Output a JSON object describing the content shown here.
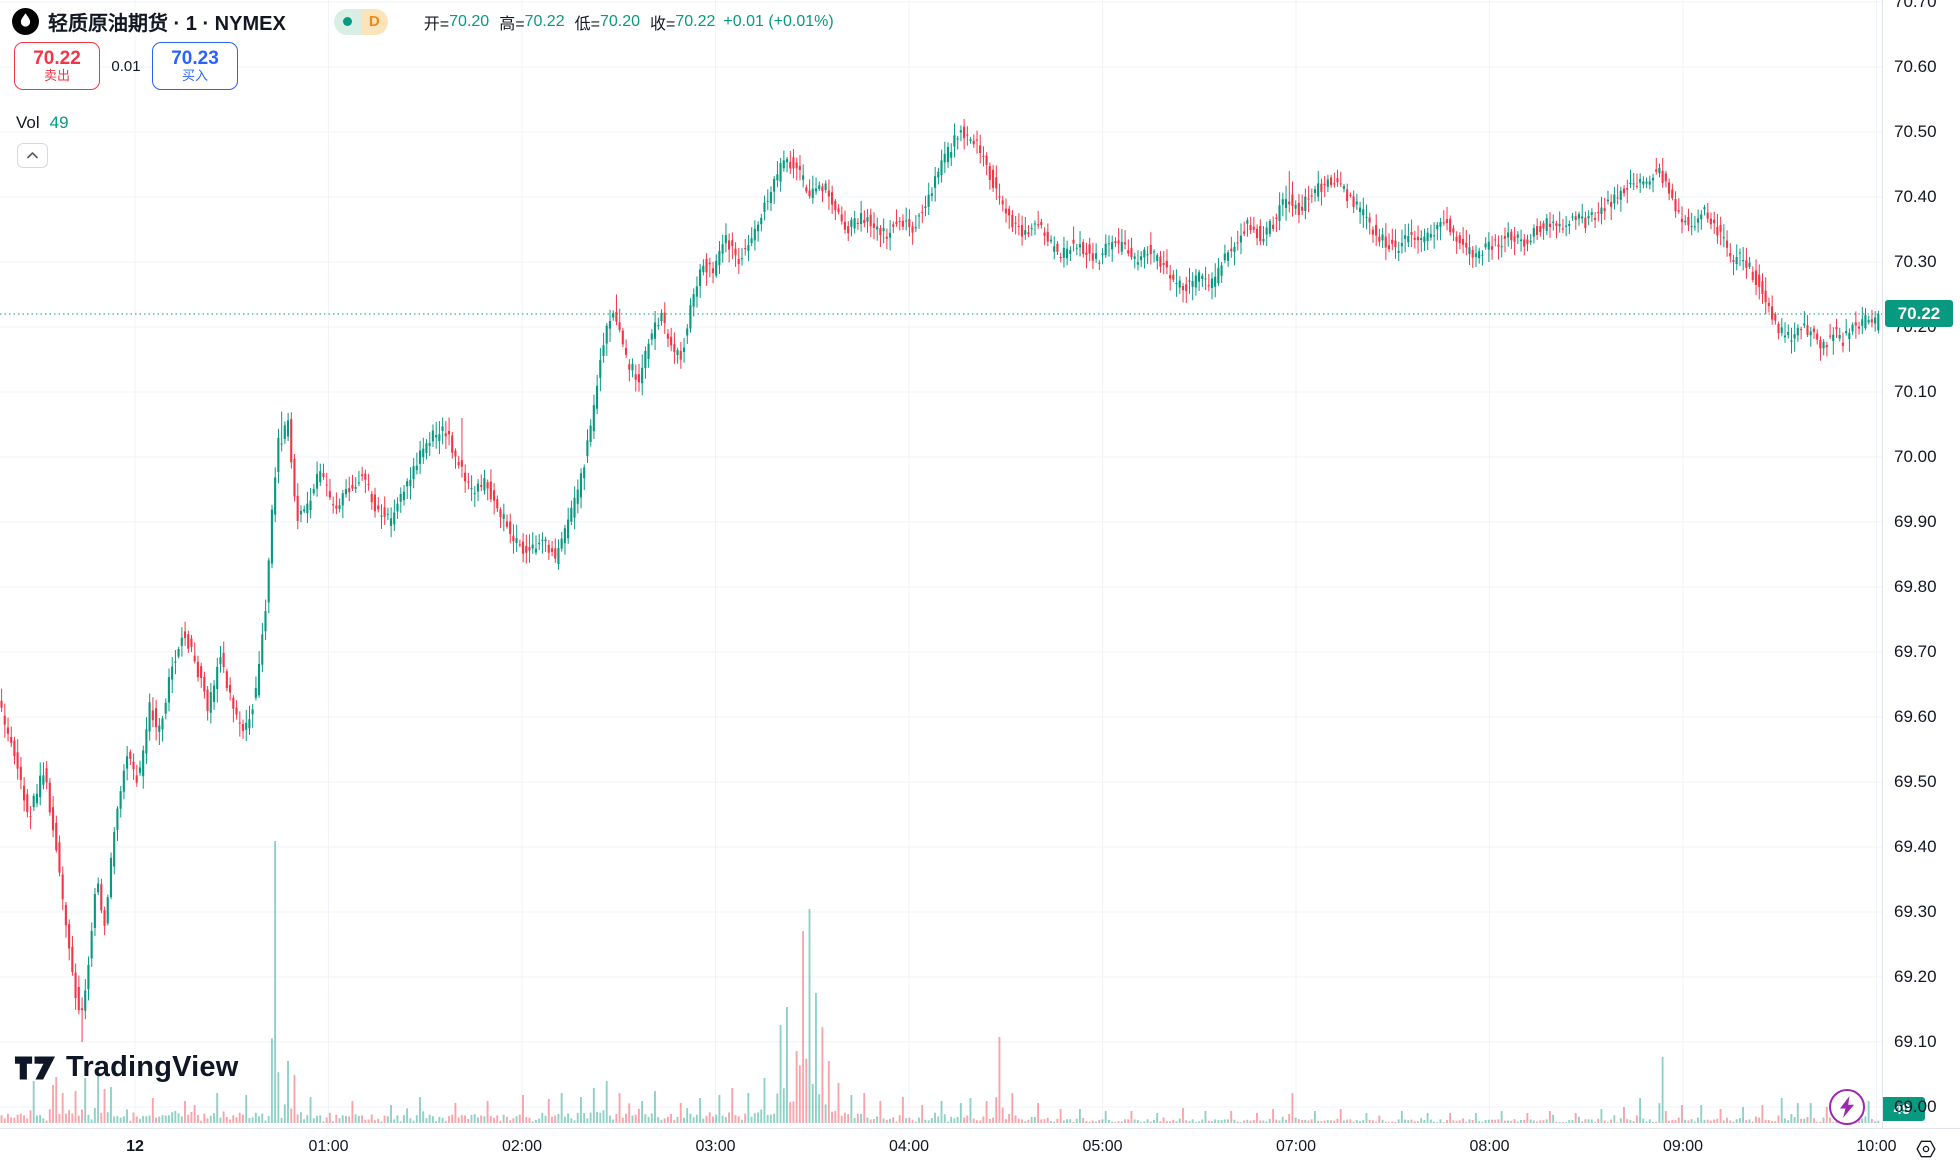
{
  "header": {
    "symbol_title": "轻质原油期货 · 1 · NYMEX",
    "interval_badge": "D",
    "ohlc": {
      "open_label": "开=",
      "open": "70.20",
      "high_label": "高=",
      "high": "70.22",
      "low_label": "低=",
      "low": "70.20",
      "close_label": "收=",
      "close": "70.22",
      "change": "+0.01 (+0.01%)"
    },
    "sell_button": {
      "price": "70.22",
      "label": "卖出"
    },
    "spread": "0.01",
    "buy_button": {
      "price": "70.23",
      "label": "买入"
    },
    "volume_label": "Vol",
    "volume_value": "49"
  },
  "watermark_text": "TradingView",
  "price_axis": {
    "current_price": "70.22",
    "volume_badge": "49"
  },
  "colors": {
    "up": "#089981",
    "down": "#f23645",
    "vol_up": "#089981",
    "vol_down": "#f23645",
    "buy_blue": "#2962ff",
    "sell_red": "#f23645",
    "badge_bg": "#089981",
    "grid": "#f0f3fa",
    "axis_border": "#e0e3eb",
    "text": "#131722",
    "lightning_purple": "#9c27b0",
    "interval_orange": "#ef8a1a"
  },
  "chart_data": {
    "type": "candlestick",
    "title": "轻质原油期货 1分钟 K线 (NYMEX Light Crude Oil Futures, 1-minute)",
    "current": {
      "open": 70.2,
      "high": 70.22,
      "low": 70.2,
      "close": 70.22,
      "change": 0.01,
      "change_pct": "+0.01%",
      "volume": 49
    },
    "day_high": 70.52,
    "day_low": 69.1,
    "y_axis": {
      "min": 69.0,
      "max": 70.7,
      "tick": 0.1,
      "labels": [
        "70.70",
        "70.60",
        "70.50",
        "70.40",
        "70.30",
        "70.20",
        "70.10",
        "70.00",
        "69.90",
        "69.80",
        "69.70",
        "69.60",
        "69.50",
        "69.40",
        "69.30",
        "69.20",
        "69.10",
        "69.00"
      ]
    },
    "x_axis": {
      "note": "06:00 skipped (session break)",
      "labels": [
        {
          "text": "12",
          "slot": 0,
          "bold": true
        },
        {
          "text": "01:00",
          "slot": 1
        },
        {
          "text": "02:00",
          "slot": 2
        },
        {
          "text": "03:00",
          "slot": 3
        },
        {
          "text": "04:00",
          "slot": 4
        },
        {
          "text": "05:00",
          "slot": 5
        },
        {
          "text": "07:00",
          "slot": 6
        },
        {
          "text": "08:00",
          "slot": 7
        },
        {
          "text": "09:00",
          "slot": 8
        },
        {
          "text": "10:00",
          "slot": 9
        }
      ]
    },
    "price_path_anchors": [
      [
        0,
        69.62
      ],
      [
        15,
        69.55
      ],
      [
        30,
        69.44
      ],
      [
        45,
        69.52
      ],
      [
        58,
        69.4
      ],
      [
        70,
        69.25
      ],
      [
        82,
        69.13
      ],
      [
        90,
        69.22
      ],
      [
        98,
        69.36
      ],
      [
        106,
        69.28
      ],
      [
        118,
        69.45
      ],
      [
        128,
        69.55
      ],
      [
        140,
        69.5
      ],
      [
        152,
        69.62
      ],
      [
        160,
        69.57
      ],
      [
        172,
        69.67
      ],
      [
        185,
        69.73
      ],
      [
        198,
        69.68
      ],
      [
        210,
        69.61
      ],
      [
        222,
        69.7
      ],
      [
        232,
        69.63
      ],
      [
        245,
        69.57
      ],
      [
        258,
        69.64
      ],
      [
        268,
        69.78
      ],
      [
        274,
        69.92
      ],
      [
        280,
        70.02
      ],
      [
        290,
        70.05
      ],
      [
        298,
        69.9
      ],
      [
        310,
        69.93
      ],
      [
        322,
        69.98
      ],
      [
        335,
        69.92
      ],
      [
        350,
        69.95
      ],
      [
        365,
        69.97
      ],
      [
        378,
        69.92
      ],
      [
        392,
        69.9
      ],
      [
        405,
        69.95
      ],
      [
        418,
        69.99
      ],
      [
        432,
        70.03
      ],
      [
        448,
        70.04
      ],
      [
        460,
        69.99
      ],
      [
        472,
        69.95
      ],
      [
        488,
        69.96
      ],
      [
        500,
        69.92
      ],
      [
        515,
        69.87
      ],
      [
        530,
        69.85
      ],
      [
        545,
        69.87
      ],
      [
        558,
        69.84
      ],
      [
        570,
        69.9
      ],
      [
        582,
        69.96
      ],
      [
        594,
        70.06
      ],
      [
        605,
        70.18
      ],
      [
        616,
        70.23
      ],
      [
        628,
        70.15
      ],
      [
        640,
        70.12
      ],
      [
        652,
        70.18
      ],
      [
        662,
        70.22
      ],
      [
        672,
        70.17
      ],
      [
        682,
        70.15
      ],
      [
        694,
        70.24
      ],
      [
        705,
        70.3
      ],
      [
        715,
        70.28
      ],
      [
        728,
        70.34
      ],
      [
        738,
        70.3
      ],
      [
        750,
        70.33
      ],
      [
        762,
        70.37
      ],
      [
        775,
        70.42
      ],
      [
        788,
        70.46
      ],
      [
        800,
        70.44
      ],
      [
        812,
        70.4
      ],
      [
        825,
        70.42
      ],
      [
        838,
        70.38
      ],
      [
        850,
        70.35
      ],
      [
        862,
        70.37
      ],
      [
        875,
        70.36
      ],
      [
        888,
        70.34
      ],
      [
        900,
        70.37
      ],
      [
        912,
        70.35
      ],
      [
        925,
        70.38
      ],
      [
        938,
        70.43
      ],
      [
        950,
        70.47
      ],
      [
        962,
        70.5
      ],
      [
        975,
        70.49
      ],
      [
        988,
        70.45
      ],
      [
        1000,
        70.4
      ],
      [
        1012,
        70.36
      ],
      [
        1025,
        70.34
      ],
      [
        1038,
        70.36
      ],
      [
        1050,
        70.33
      ],
      [
        1062,
        70.31
      ],
      [
        1075,
        70.33
      ],
      [
        1088,
        70.32
      ],
      [
        1100,
        70.3
      ],
      [
        1112,
        70.33
      ],
      [
        1125,
        70.32
      ],
      [
        1138,
        70.3
      ],
      [
        1150,
        70.32
      ],
      [
        1162,
        70.3
      ],
      [
        1175,
        70.27
      ],
      [
        1188,
        70.26
      ],
      [
        1200,
        70.28
      ],
      [
        1212,
        70.26
      ],
      [
        1225,
        70.3
      ],
      [
        1238,
        70.33
      ],
      [
        1250,
        70.36
      ],
      [
        1262,
        70.34
      ],
      [
        1275,
        70.36
      ],
      [
        1288,
        70.4
      ],
      [
        1300,
        70.38
      ],
      [
        1312,
        70.4
      ],
      [
        1325,
        70.42
      ],
      [
        1338,
        70.42
      ],
      [
        1350,
        70.4
      ],
      [
        1362,
        70.38
      ],
      [
        1375,
        70.35
      ],
      [
        1388,
        70.33
      ],
      [
        1400,
        70.32
      ],
      [
        1412,
        70.34
      ],
      [
        1425,
        70.33
      ],
      [
        1438,
        70.35
      ],
      [
        1450,
        70.36
      ],
      [
        1462,
        70.33
      ],
      [
        1475,
        70.31
      ],
      [
        1488,
        70.32
      ],
      [
        1500,
        70.33
      ],
      [
        1512,
        70.34
      ],
      [
        1525,
        70.33
      ],
      [
        1538,
        70.35
      ],
      [
        1550,
        70.36
      ],
      [
        1562,
        70.35
      ],
      [
        1575,
        70.37
      ],
      [
        1588,
        70.36
      ],
      [
        1600,
        70.38
      ],
      [
        1612,
        70.39
      ],
      [
        1625,
        70.41
      ],
      [
        1638,
        70.42
      ],
      [
        1650,
        70.43
      ],
      [
        1662,
        70.44
      ],
      [
        1672,
        70.4
      ],
      [
        1682,
        70.37
      ],
      [
        1695,
        70.36
      ],
      [
        1705,
        70.38
      ],
      [
        1715,
        70.36
      ],
      [
        1725,
        70.33
      ],
      [
        1735,
        70.3
      ],
      [
        1745,
        70.31
      ],
      [
        1755,
        70.28
      ],
      [
        1765,
        70.25
      ],
      [
        1775,
        70.21
      ],
      [
        1785,
        70.19
      ],
      [
        1795,
        70.18
      ],
      [
        1805,
        70.2
      ],
      [
        1815,
        70.19
      ],
      [
        1825,
        70.17
      ],
      [
        1835,
        70.19
      ],
      [
        1845,
        70.18
      ],
      [
        1855,
        70.2
      ],
      [
        1866,
        70.21
      ],
      [
        1880,
        70.22
      ]
    ],
    "forced_wicks": [
      [
        82,
        "low",
        69.1
      ],
      [
        280,
        "high",
        70.07
      ],
      [
        460,
        "high",
        70.06
      ],
      [
        616,
        "high",
        70.25
      ],
      [
        962,
        "high",
        70.52
      ],
      [
        1288,
        "high",
        70.44
      ],
      [
        1662,
        "high",
        70.46
      ]
    ],
    "volume_spikes": [
      [
        33,
        42
      ],
      [
        50,
        38
      ],
      [
        55,
        46
      ],
      [
        62,
        30
      ],
      [
        75,
        32
      ],
      [
        85,
        45
      ],
      [
        95,
        50
      ],
      [
        103,
        34
      ],
      [
        110,
        36
      ],
      [
        150,
        25
      ],
      [
        185,
        22
      ],
      [
        216,
        30
      ],
      [
        245,
        28
      ],
      [
        273,
        282,
        "u"
      ],
      [
        285,
        62,
        "u"
      ],
      [
        293,
        48
      ],
      [
        310,
        26
      ],
      [
        350,
        22
      ],
      [
        390,
        18
      ],
      [
        420,
        26
      ],
      [
        455,
        20
      ],
      [
        487,
        22
      ],
      [
        520,
        28
      ],
      [
        548,
        24
      ],
      [
        560,
        30
      ],
      [
        578,
        26
      ],
      [
        592,
        35
      ],
      [
        605,
        42
      ],
      [
        618,
        30
      ],
      [
        640,
        22
      ],
      [
        655,
        32
      ],
      [
        680,
        20
      ],
      [
        700,
        25
      ],
      [
        718,
        28
      ],
      [
        730,
        35
      ],
      [
        748,
        30
      ],
      [
        762,
        45
      ],
      [
        778,
        98,
        "u"
      ],
      [
        786,
        116,
        "u"
      ],
      [
        795,
        72
      ],
      [
        802,
        192,
        "d"
      ],
      [
        807,
        214,
        "u"
      ],
      [
        813,
        130,
        "u"
      ],
      [
        820,
        96
      ],
      [
        828,
        62
      ],
      [
        838,
        40
      ],
      [
        850,
        28
      ],
      [
        862,
        30
      ],
      [
        880,
        22
      ],
      [
        900,
        26
      ],
      [
        920,
        18
      ],
      [
        940,
        22
      ],
      [
        958,
        20
      ],
      [
        970,
        25
      ],
      [
        985,
        22
      ],
      [
        999,
        86,
        "d"
      ],
      [
        1012,
        30
      ],
      [
        1035,
        20
      ],
      [
        1060,
        14
      ],
      [
        1080,
        14
      ],
      [
        1105,
        12
      ],
      [
        1130,
        12
      ],
      [
        1155,
        10
      ],
      [
        1180,
        15
      ],
      [
        1205,
        12
      ],
      [
        1230,
        12
      ],
      [
        1255,
        10
      ],
      [
        1270,
        14
      ],
      [
        1292,
        30
      ],
      [
        1315,
        12
      ],
      [
        1340,
        14
      ],
      [
        1365,
        10
      ],
      [
        1400,
        12
      ],
      [
        1425,
        10
      ],
      [
        1450,
        10
      ],
      [
        1475,
        10
      ],
      [
        1500,
        12
      ],
      [
        1525,
        10
      ],
      [
        1550,
        12
      ],
      [
        1575,
        10
      ],
      [
        1600,
        14
      ],
      [
        1622,
        16
      ],
      [
        1640,
        25
      ],
      [
        1662,
        66,
        "u"
      ],
      [
        1680,
        18
      ],
      [
        1700,
        18
      ],
      [
        1720,
        14
      ],
      [
        1740,
        16
      ],
      [
        1760,
        18
      ],
      [
        1780,
        25
      ],
      [
        1795,
        20
      ],
      [
        1810,
        20
      ],
      [
        1825,
        16
      ],
      [
        1840,
        18
      ],
      [
        1855,
        20
      ],
      [
        1868,
        22
      ]
    ]
  }
}
